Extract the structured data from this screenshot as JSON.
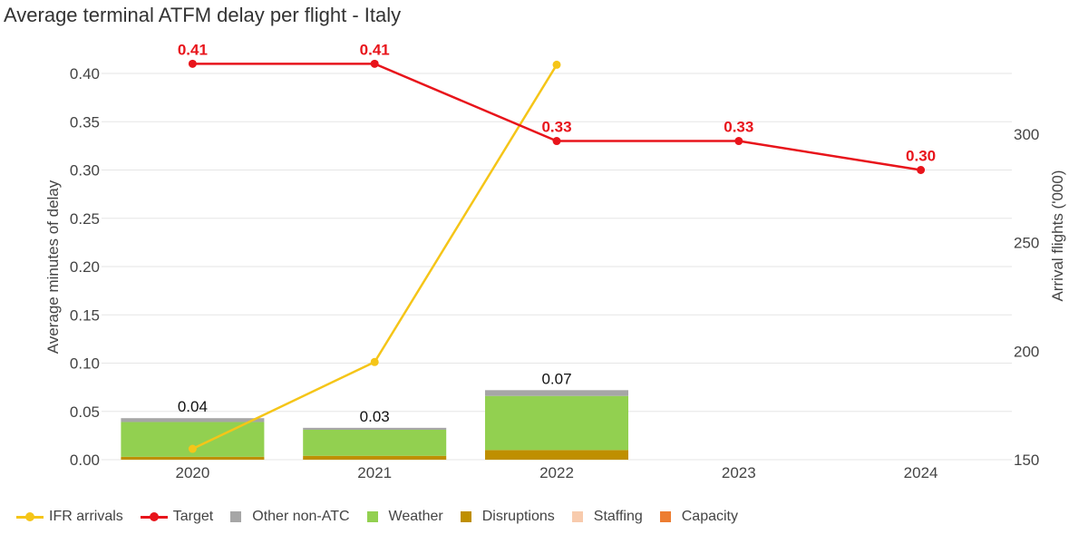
{
  "title": "Average terminal ATFM delay per flight - Italy",
  "legend": {
    "ifr_arrivals": "IFR arrivals",
    "target": "Target",
    "other_non_atc": "Other non-ATC",
    "weather": "Weather",
    "disruptions": "Disruptions",
    "staffing": "Staffing",
    "capacity": "Capacity"
  },
  "colors": {
    "ifr_arrivals": "#f5c518",
    "target": "#e8141b",
    "other_non_atc": "#a6a6a6",
    "weather": "#92d050",
    "disruptions": "#bf8f00",
    "staffing": "#f8cbad",
    "capacity": "#ed7d31"
  },
  "chart_data": {
    "type": "bar",
    "categories": [
      "2020",
      "2021",
      "2022",
      "2023",
      "2024"
    ],
    "ylabel": "Average minutes of delay",
    "y2label": "Arrival flights ('000)",
    "ylim": [
      0,
      0.4
    ],
    "y2lim": [
      150,
      300
    ],
    "yticks": [
      "0.00",
      "0.05",
      "0.10",
      "0.15",
      "0.20",
      "0.25",
      "0.30",
      "0.35",
      "0.40"
    ],
    "y2ticks": [
      "150",
      "200",
      "250",
      "300"
    ],
    "stacked_series": [
      {
        "name": "Capacity",
        "values": [
          0,
          0,
          0
        ]
      },
      {
        "name": "Staffing",
        "values": [
          0,
          0,
          0
        ]
      },
      {
        "name": "Disruptions",
        "values": [
          0.003,
          0.004,
          0.01
        ]
      },
      {
        "name": "Weather",
        "values": [
          0.036,
          0.027,
          0.056
        ]
      },
      {
        "name": "Other non-ATC",
        "values": [
          0.004,
          0.002,
          0.006
        ]
      }
    ],
    "bar_totals": [
      "0.04",
      "0.03",
      "0.07"
    ],
    "target": {
      "name": "Target",
      "values": [
        0.41,
        0.41,
        0.33,
        0.33,
        0.3
      ],
      "labels": [
        "0.41",
        "0.41",
        "0.33",
        "0.33",
        "0.30"
      ]
    },
    "ifr_arrivals": {
      "name": "IFR arrivals",
      "axis": "right",
      "values": [
        155,
        195,
        332
      ]
    },
    "grid": true,
    "legend_position": "bottom"
  }
}
